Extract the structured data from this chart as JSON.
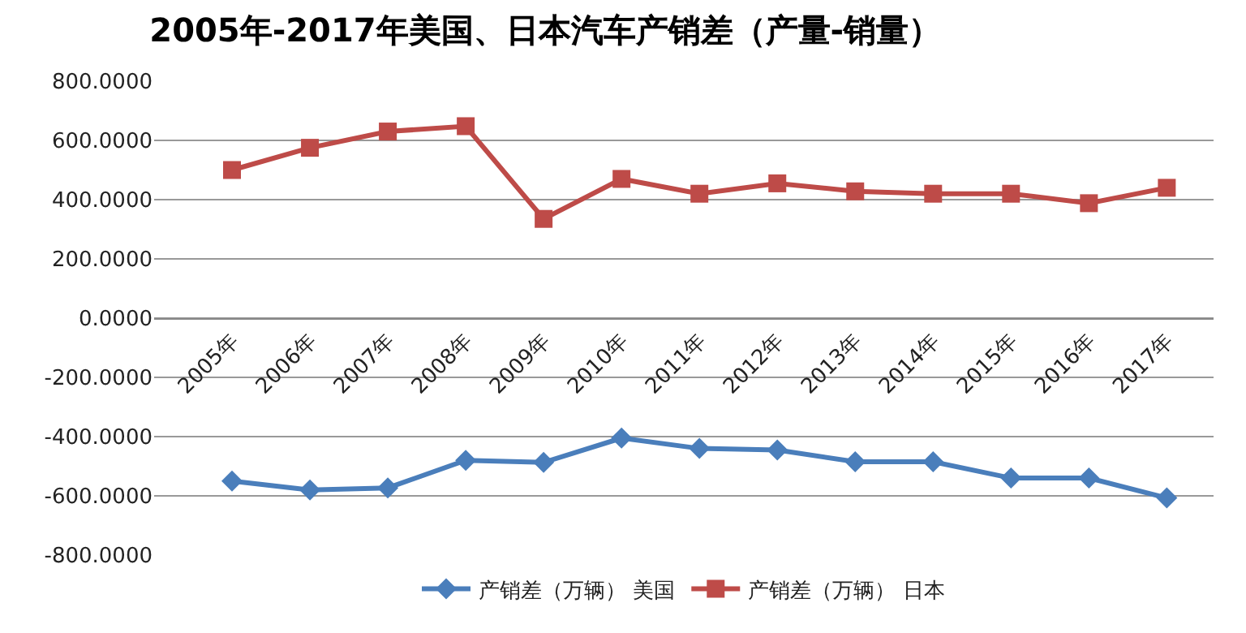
{
  "chart_data": {
    "type": "line",
    "title": "2005年-2017年美国、日本汽车产销差（产量-销量）",
    "categories": [
      "2005年",
      "2006年",
      "2007年",
      "2008年",
      "2009年",
      "2010年",
      "2011年",
      "2012年",
      "2013年",
      "2014年",
      "2015年",
      "2016年",
      "2017年"
    ],
    "series": [
      {
        "name": "产销差（万辆） 美国",
        "color": "#4a7ebb",
        "marker": "diamond",
        "values": [
          -550,
          -580,
          -573,
          -480,
          -487,
          -405,
          -440,
          -445,
          -485,
          -485,
          -540,
          -540,
          -607
        ]
      },
      {
        "name": "产销差（万辆） 日本",
        "color": "#be4b48",
        "marker": "square",
        "values": [
          500,
          575,
          630,
          648,
          335,
          470,
          420,
          455,
          428,
          420,
          420,
          388,
          440
        ]
      }
    ],
    "ylim": [
      -800,
      800
    ],
    "yticks": [
      {
        "value": -800,
        "label": "-800.0000"
      },
      {
        "value": -600,
        "label": "-600.0000"
      },
      {
        "value": -400,
        "label": "-400.0000"
      },
      {
        "value": -200,
        "label": "-200.0000"
      },
      {
        "value": 0,
        "label": "0.0000"
      },
      {
        "value": 200,
        "label": "200.0000"
      },
      {
        "value": 400,
        "label": "400.0000"
      },
      {
        "value": 600,
        "label": "600.0000"
      },
      {
        "value": 800,
        "label": "800.0000"
      }
    ],
    "grid": "y",
    "legend": "bottom",
    "line_style": "solid"
  }
}
